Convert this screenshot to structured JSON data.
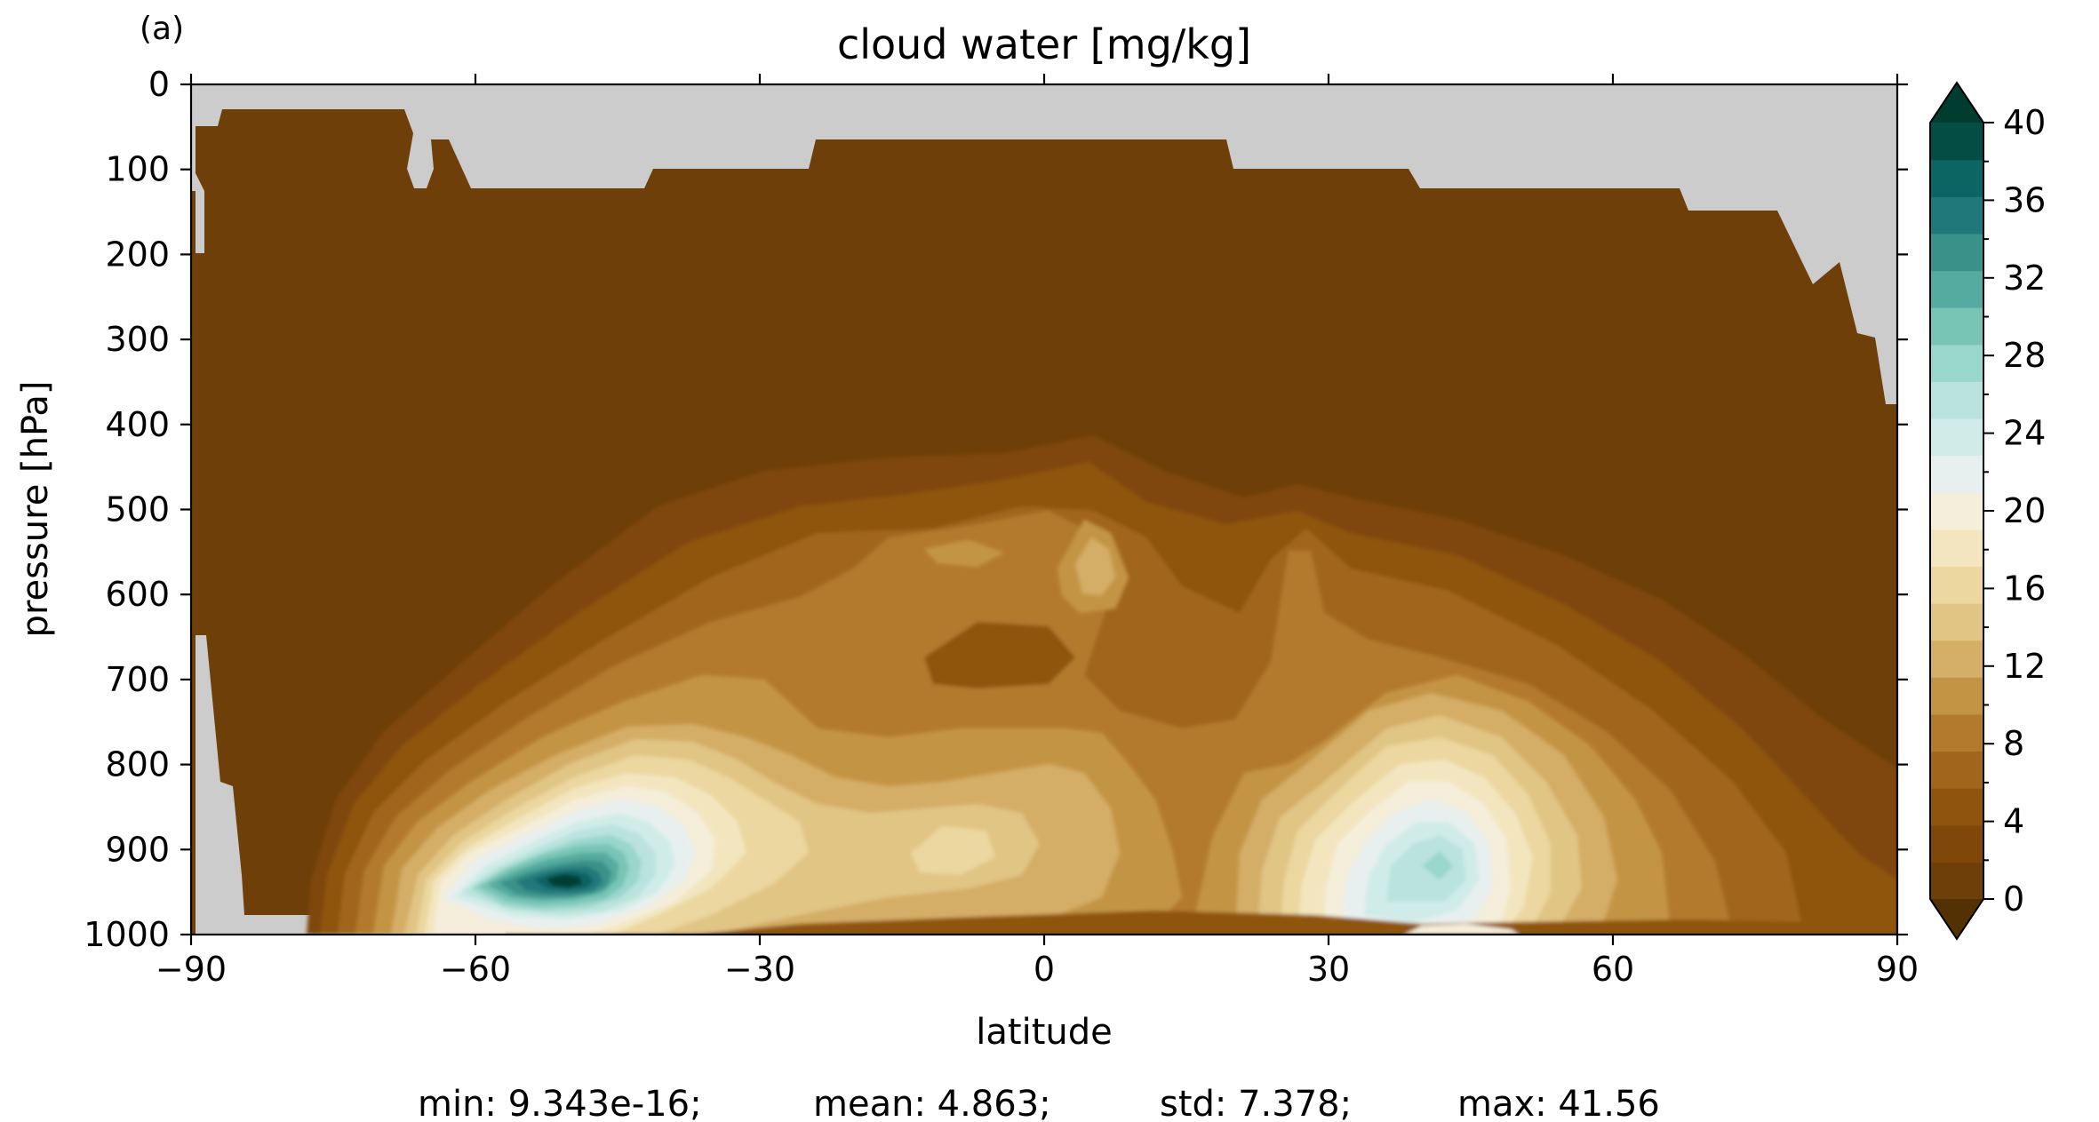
{
  "chart_data": {
    "type": "contourf",
    "panel_label": "(a)",
    "title": "cloud water [mg/kg]",
    "xlabel": "latitude",
    "ylabel": "pressure [hPa]",
    "xlim": [
      -90,
      90
    ],
    "ylim": [
      1000,
      0
    ],
    "xticks": [
      "−90",
      "−60",
      "−30",
      "0",
      "30",
      "60",
      "90"
    ],
    "yticks": [
      "0",
      "100",
      "200",
      "300",
      "400",
      "500",
      "600",
      "700",
      "800",
      "900",
      "1000"
    ],
    "colorbar": {
      "min": 0,
      "max": 40,
      "step": 2,
      "extend": "both",
      "tick_labels": [
        "0",
        "4",
        "8",
        "12",
        "16",
        "20",
        "24",
        "28",
        "32",
        "36",
        "40"
      ],
      "colors": [
        "#6e3f09",
        "#7f470a",
        "#8f540e",
        "#a1661b",
        "#b37a2e",
        "#c49445",
        "#d4ad66",
        "#e1c585",
        "#ebd79f",
        "#f3e6bf",
        "#f4eedb",
        "#e8f0ef",
        "#d0ece8",
        "#b9e3dc",
        "#99d6cb",
        "#78c5b5",
        "#55ab9f",
        "#3a9189",
        "#21787a",
        "#0c6463",
        "#034d44"
      ],
      "under_color": "#543005",
      "over_color": "#003c30"
    },
    "missing_color": "#cccccc",
    "features": [
      {
        "name": "southern-hemisphere-maximum",
        "lat": -50,
        "pressure_hpa": 900,
        "value_mg_kg": 41.56
      },
      {
        "name": "northern-hemisphere-maximum",
        "lat": 45,
        "pressure_hpa": 890,
        "value_mg_kg": 27
      },
      {
        "name": "tropical-upper-maximum",
        "lat": 5,
        "pressure_hpa": 550,
        "value_mg_kg": 13
      }
    ],
    "stats": {
      "min": "min: 9.343e-16;",
      "mean": "mean: 4.863;",
      "std": "std: 7.378;",
      "max": "max: 41.56"
    }
  }
}
